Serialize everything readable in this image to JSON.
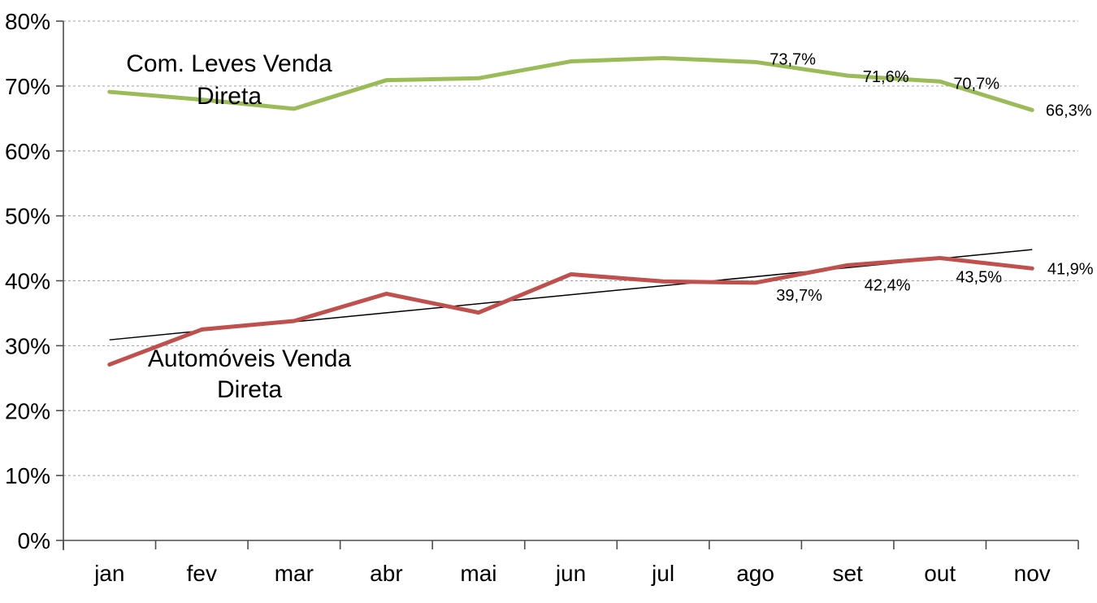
{
  "chart_data": {
    "type": "line",
    "title": "",
    "xlabel": "",
    "ylabel": "",
    "ylim": [
      0,
      80
    ],
    "ytick_step": 10,
    "grid": "dashed-horizontal",
    "legend_position": "none",
    "background": "#ffffff",
    "y_ticks": [
      "0%",
      "10%",
      "20%",
      "30%",
      "40%",
      "50%",
      "60%",
      "70%",
      "80%"
    ],
    "categories": [
      "jan",
      "fev",
      "mar",
      "abr",
      "mai",
      "jun",
      "jul",
      "ago",
      "set",
      "out",
      "nov"
    ],
    "series": [
      {
        "name": "Com. Leves Venda Direta",
        "annotation_lines": [
          "Com. Leves Venda",
          "Direta"
        ],
        "color": "#9bbb59",
        "values": [
          69.1,
          67.9,
          66.5,
          70.9,
          71.2,
          73.8,
          74.3,
          73.7,
          71.6,
          70.7,
          66.3
        ],
        "point_labels": [
          null,
          null,
          null,
          null,
          null,
          null,
          null,
          "73,7%",
          "71,6%",
          "70,7%",
          "66,3%"
        ]
      },
      {
        "name": "Automóveis Venda Direta",
        "annotation_lines": [
          "Automóveis Venda",
          "Direta"
        ],
        "color": "#c0504d",
        "values": [
          27.1,
          32.5,
          33.8,
          38.0,
          35.1,
          41.0,
          39.9,
          39.7,
          42.4,
          43.5,
          41.9
        ],
        "point_labels": [
          null,
          null,
          null,
          null,
          null,
          null,
          null,
          "39,7%",
          "42,4%",
          "43,5%",
          "41,9%"
        ]
      }
    ],
    "trendline": {
      "series": "Automóveis Venda Direta",
      "color": "#000000",
      "start_value": 30.9,
      "end_value": 44.8
    },
    "colors": {
      "gridline": "#a0a0a0",
      "axis": "#4d4d4d",
      "text": "#000000"
    }
  }
}
